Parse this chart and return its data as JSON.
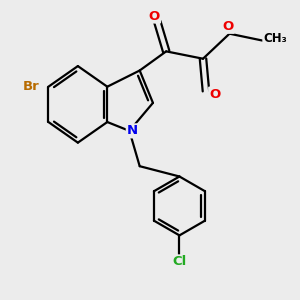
{
  "background_color": "#ececec",
  "bond_color": "#000000",
  "bond_lw": 1.6,
  "atom_colors": {
    "Br": "#b86b00",
    "N": "#0000ee",
    "O": "#ee0000",
    "Cl": "#22aa22",
    "C": "#000000"
  },
  "figsize": [
    3.0,
    3.0
  ],
  "dpi": 100
}
